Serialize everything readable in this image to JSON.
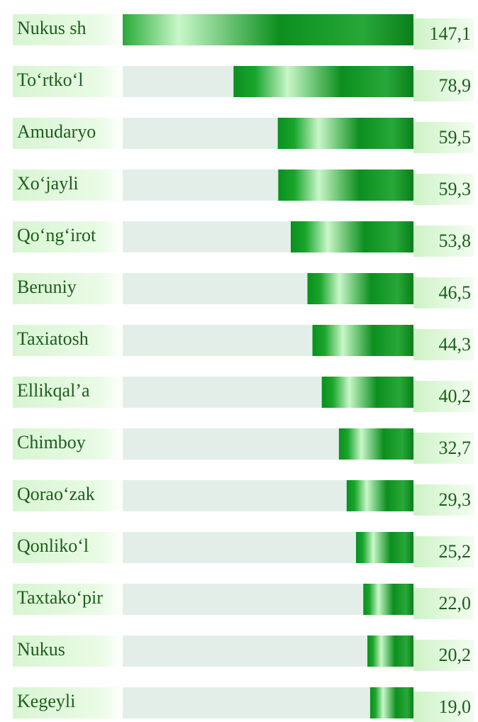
{
  "chart_data": {
    "type": "bar",
    "orientation": "horizontal",
    "categories": [
      "Nukus sh",
      "To‘rtko‘l",
      "Amudaryo",
      "Xo‘jayli",
      "Qo‘ng‘irot",
      "Beruniy",
      "Taxiatosh",
      "Ellikqal’a",
      "Chimboy",
      "Qorao‘zak",
      "Qonliko‘l",
      "Taxtako‘pir",
      "Nukus",
      "Kegeyli"
    ],
    "values": [
      147.1,
      78.9,
      59.5,
      59.3,
      53.8,
      46.5,
      44.3,
      40.2,
      32.7,
      29.3,
      25.2,
      22.0,
      20.2,
      19.0
    ],
    "value_labels": [
      "147,1",
      "78,9",
      "59,5",
      "59,3",
      "53,8",
      "46,5",
      "44,3",
      "40,2",
      "32,7",
      "29,3",
      "25,2",
      "22,0",
      "20,2",
      "19,0"
    ],
    "color": "#0a8f1e"
  }
}
